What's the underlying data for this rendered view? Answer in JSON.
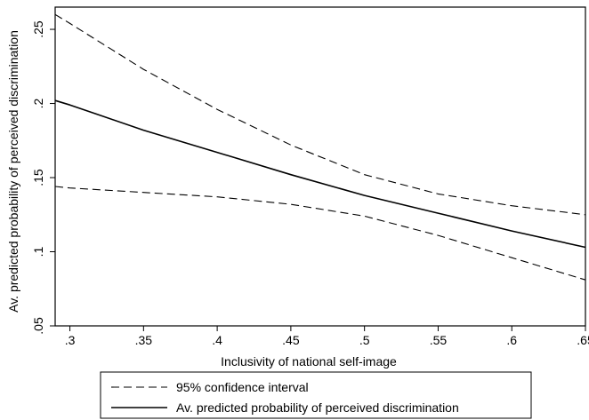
{
  "chart_data": {
    "type": "line",
    "title": "",
    "xlabel": "Inclusivity of national self-image",
    "ylabel": "Av. predicted probability of perceived discrimination",
    "xlim": [
      0.29,
      0.65
    ],
    "ylim": [
      0.05,
      0.265
    ],
    "grid": false,
    "legend_position": "bottom",
    "x_ticks": [
      0.3,
      0.35,
      0.4,
      0.45,
      0.5,
      0.55,
      0.6,
      0.65
    ],
    "x_tick_labels": [
      ".3",
      ".35",
      ".4",
      ".45",
      ".5",
      ".55",
      ".6",
      ".65"
    ],
    "y_ticks": [
      0.05,
      0.1,
      0.15,
      0.2,
      0.25
    ],
    "y_tick_labels": [
      ".05",
      ".1",
      ".15",
      ".2",
      ".25"
    ],
    "series": [
      {
        "name": "Av. predicted probability of perceived discrimination",
        "style": "solid",
        "color": "#000000",
        "x": [
          0.29,
          0.3,
          0.35,
          0.4,
          0.45,
          0.5,
          0.55,
          0.6,
          0.65
        ],
        "y": [
          0.202,
          0.199,
          0.182,
          0.167,
          0.152,
          0.138,
          0.126,
          0.114,
          0.103
        ]
      },
      {
        "name": "95% confidence interval",
        "style": "dashed",
        "color": "#000000",
        "x": [
          0.29,
          0.3,
          0.35,
          0.4,
          0.45,
          0.5,
          0.55,
          0.6,
          0.65
        ],
        "y": [
          0.26,
          0.254,
          0.223,
          0.196,
          0.172,
          0.152,
          0.139,
          0.131,
          0.125
        ]
      },
      {
        "name": "95% confidence interval",
        "style": "dashed",
        "color": "#000000",
        "x": [
          0.29,
          0.3,
          0.35,
          0.4,
          0.45,
          0.5,
          0.55,
          0.6,
          0.65
        ],
        "y": [
          0.144,
          0.143,
          0.14,
          0.137,
          0.132,
          0.124,
          0.111,
          0.096,
          0.081
        ]
      }
    ],
    "legend": [
      {
        "label": "95% confidence interval",
        "style": "dashed"
      },
      {
        "label": "Av. predicted probability of perceived discrimination",
        "style": "solid"
      }
    ]
  }
}
